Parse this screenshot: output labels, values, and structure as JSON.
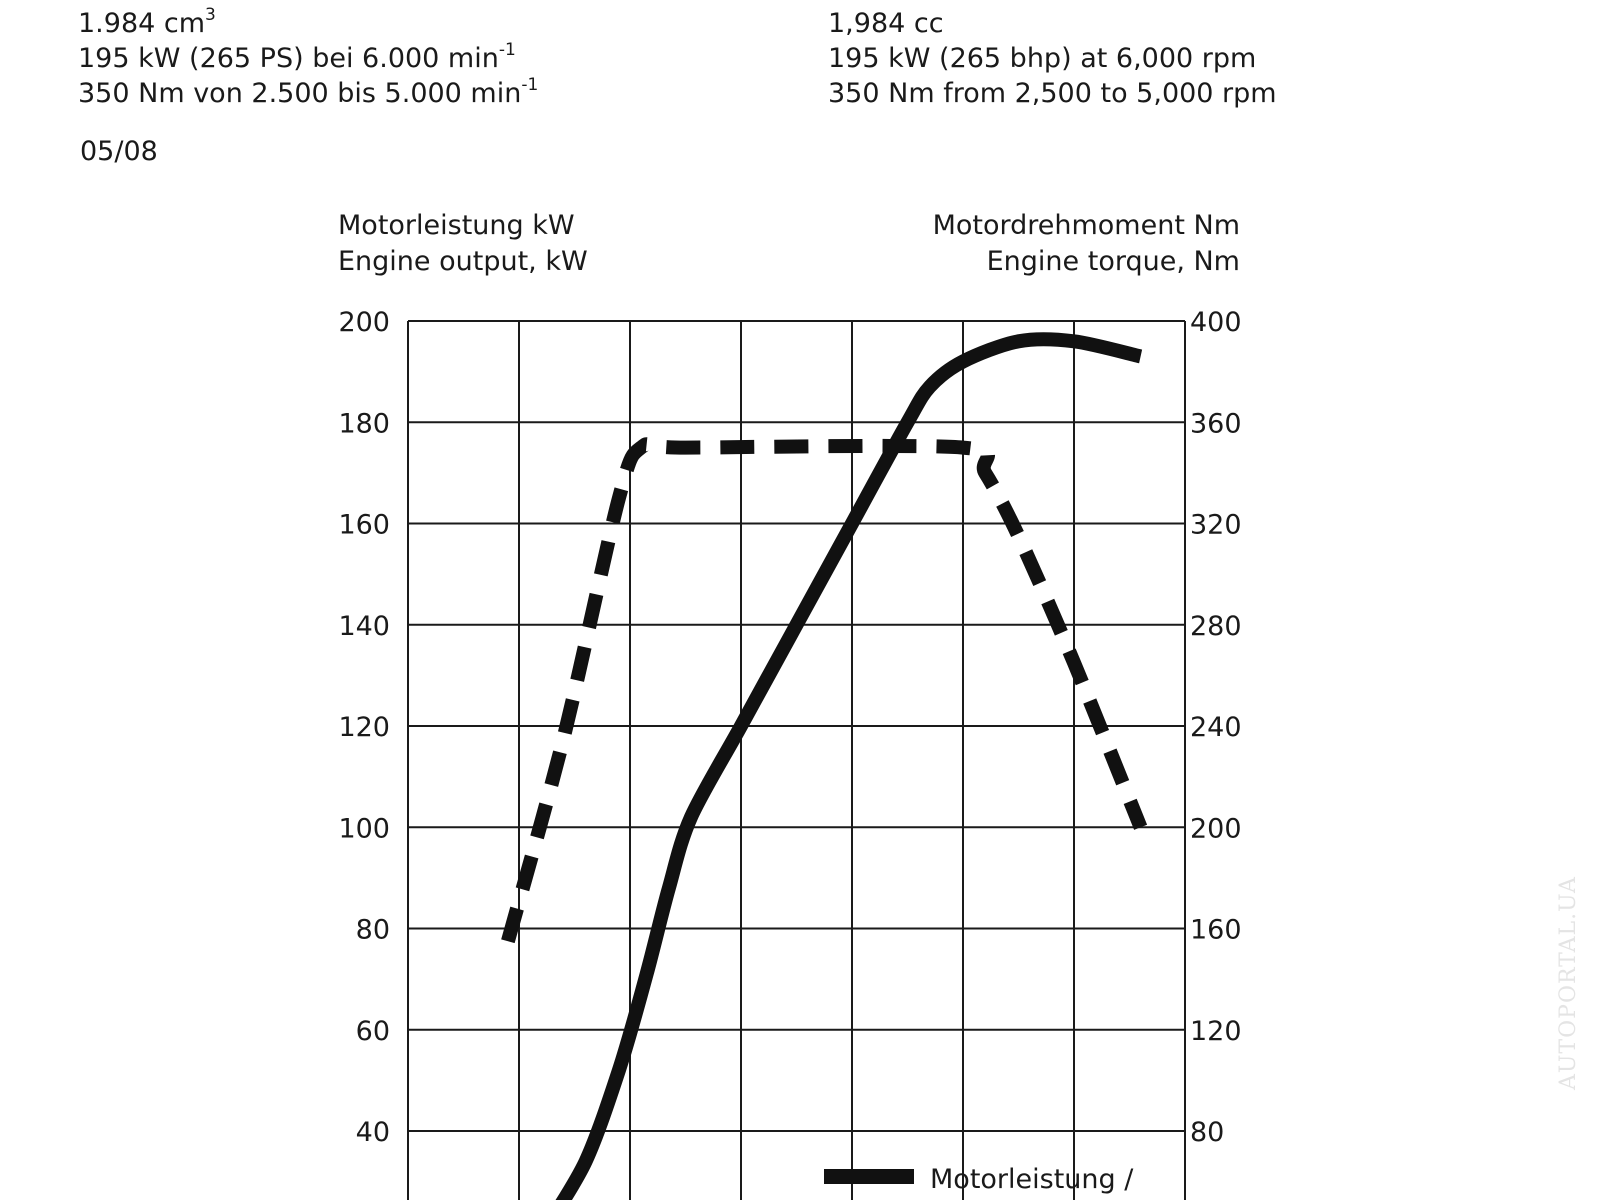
{
  "spec_de": {
    "displacement": "1.984 cm",
    "displacement_sup": "3",
    "power": "195 kW (265 PS) bei 6.000 min",
    "power_sup": "-1",
    "torque": "350 Nm von 2.500 bis  5.000 min",
    "torque_sup": "-1"
  },
  "spec_en": {
    "displacement": "1,984 cc",
    "power": "195 kW (265 bhp) at 6,000 rpm",
    "torque": "350 Nm from 2,500 to 5,000 rpm"
  },
  "date": "05/08",
  "watermark": "AUTOPORTAL.UA",
  "chart_data": {
    "type": "line",
    "ylabel_left": [
      "Motorleistung kW",
      "Engine output, kW"
    ],
    "ylabel_right": [
      "Motordrehmoment Nm",
      "Engine torque, Nm"
    ],
    "y_left_ticks": [
      "200",
      "180",
      "160",
      "140",
      "120",
      "100",
      "80",
      "60",
      "40"
    ],
    "y_right_ticks": [
      "400",
      "360",
      "320",
      "280",
      "240",
      "200",
      "160",
      "120",
      "80"
    ],
    "y_left_range": [
      20,
      200
    ],
    "y_right_range": [
      40,
      400
    ],
    "x_range": [
      0,
      7
    ],
    "x_gridlines": [
      1,
      2,
      3,
      4,
      5,
      6
    ],
    "grid": true,
    "legend": {
      "position": "bottom-right",
      "power_label": "Motorleistung /"
    },
    "series": [
      {
        "key": "power",
        "axis": "left",
        "style": "solid",
        "points": [
          [
            1.22,
            20
          ],
          [
            1.6,
            34
          ],
          [
            1.9,
            52
          ],
          [
            2.15,
            71
          ],
          [
            2.35,
            88
          ],
          [
            2.55,
            102
          ],
          [
            3.0,
            120
          ],
          [
            3.5,
            140
          ],
          [
            4.0,
            160
          ],
          [
            4.5,
            180
          ],
          [
            4.7,
            187
          ],
          [
            5.0,
            192
          ],
          [
            5.5,
            196
          ],
          [
            6.0,
            196
          ],
          [
            6.6,
            193
          ]
        ]
      },
      {
        "key": "torque",
        "axis": "right",
        "style": "dashed",
        "points": [
          [
            0.9,
            155
          ],
          [
            1.4,
            235
          ],
          [
            1.9,
            330
          ],
          [
            2.1,
            350
          ],
          [
            2.5,
            350
          ],
          [
            5.0,
            350
          ],
          [
            5.2,
            340
          ],
          [
            5.5,
            315
          ],
          [
            6.0,
            265
          ],
          [
            6.6,
            200
          ]
        ]
      }
    ]
  }
}
